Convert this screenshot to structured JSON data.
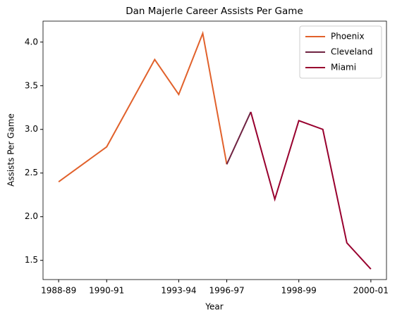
{
  "chart_data": {
    "type": "line",
    "title": "Dan Majerle Career Assists Per Game",
    "xlabel": "Year",
    "ylabel": "Assists Per Game",
    "series": [
      {
        "name": "Phoenix",
        "color": "#e1612b",
        "x": [
          0,
          2,
          4,
          5,
          6,
          7
        ],
        "values": [
          2.4,
          2.8,
          3.8,
          3.4,
          4.1,
          2.6
        ]
      },
      {
        "name": "Cleveland",
        "color": "#6f2342",
        "x": [
          7,
          8
        ],
        "values": [
          2.6,
          3.2
        ]
      },
      {
        "name": "Miami",
        "color": "#98002e",
        "x": [
          8,
          9,
          10,
          11,
          12,
          13
        ],
        "values": [
          3.2,
          2.2,
          3.1,
          3.0,
          1.7,
          1.4
        ]
      }
    ],
    "xlim": [
      -0.65,
      13.65
    ],
    "xticks": [
      {
        "value": 0,
        "label": "1988-89"
      },
      {
        "value": 2,
        "label": "1990-91"
      },
      {
        "value": 5,
        "label": "1993-94"
      },
      {
        "value": 7,
        "label": "1996-97"
      },
      {
        "value": 10,
        "label": "1998-99"
      },
      {
        "value": 13,
        "label": "2000-01"
      }
    ],
    "ylim": [
      1.28,
      4.24
    ],
    "yticks": [
      1.5,
      {
        "value": 2,
        "label": "2.0"
      },
      2.5,
      {
        "value": 3,
        "label": "3.0"
      },
      3.5,
      {
        "value": 4,
        "label": "4.0"
      }
    ],
    "grid": false,
    "legend": "upper right"
  }
}
